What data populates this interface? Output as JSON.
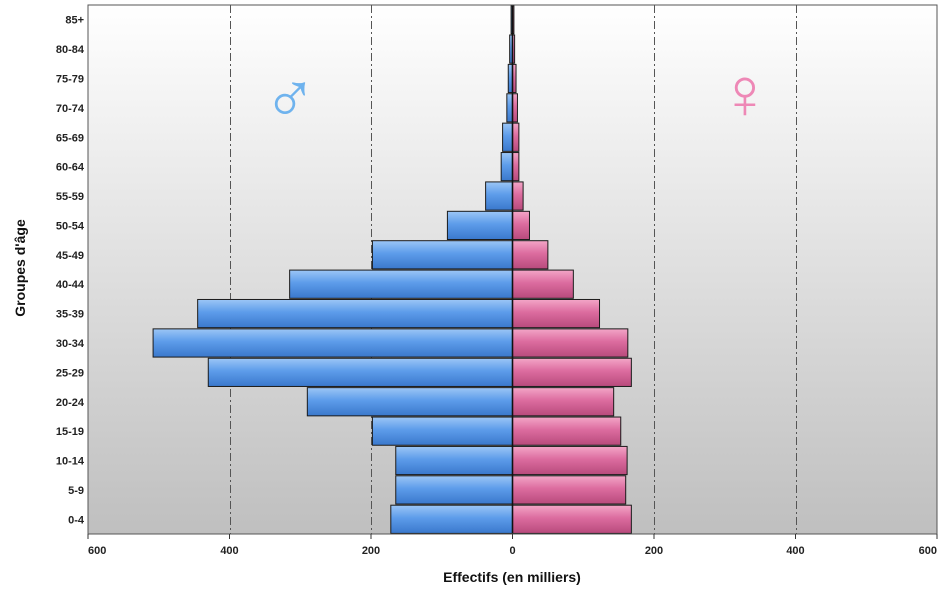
{
  "chart_data": {
    "type": "bar",
    "orientation": "horizontal",
    "subtype": "population-pyramid",
    "title": "",
    "xlabel": "Effectifs (en milliers)",
    "ylabel": "Groupes d'âge",
    "xlim": [
      -600,
      600
    ],
    "x_ticks": [
      -600,
      -400,
      -200,
      0,
      200,
      400,
      600
    ],
    "x_tick_labels": [
      "600",
      "400",
      "200",
      "0",
      "200",
      "400",
      "600"
    ],
    "grid": "vertical dashed",
    "categories": [
      "0-4",
      "5-9",
      "10-14",
      "15-19",
      "20-24",
      "25-29",
      "30-34",
      "35-39",
      "40-44",
      "45-49",
      "50-54",
      "55-59",
      "60-64",
      "65-69",
      "70-74",
      "75-79",
      "80-84",
      "85+"
    ],
    "series": [
      {
        "symbol": "♂",
        "side": "left",
        "color": "#4f8fe0",
        "values": [
          172,
          165,
          165,
          198,
          290,
          430,
          508,
          445,
          315,
          198,
          92,
          38,
          16,
          14,
          8,
          6,
          4,
          2
        ]
      },
      {
        "symbol": "♀",
        "side": "right",
        "color": "#d8689a",
        "values": [
          168,
          160,
          162,
          153,
          143,
          168,
          163,
          123,
          86,
          50,
          24,
          15,
          9,
          9,
          7,
          5,
          3,
          2
        ]
      }
    ]
  }
}
